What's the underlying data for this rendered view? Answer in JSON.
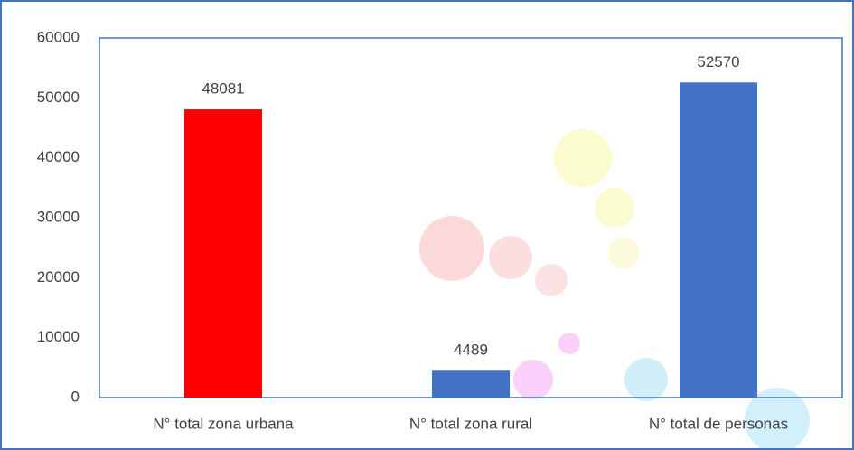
{
  "chart_data": {
    "type": "bar",
    "categories": [
      "N° total zona urbana",
      "N° total zona rural",
      "N° total de personas"
    ],
    "values": [
      48081,
      4489,
      52570
    ],
    "colors": [
      "#ff0000",
      "#4472c4",
      "#4472c4"
    ],
    "ylim": [
      0,
      60000
    ],
    "yticks": [
      0,
      10000,
      20000,
      30000,
      40000,
      50000,
      60000
    ],
    "grid": false
  }
}
